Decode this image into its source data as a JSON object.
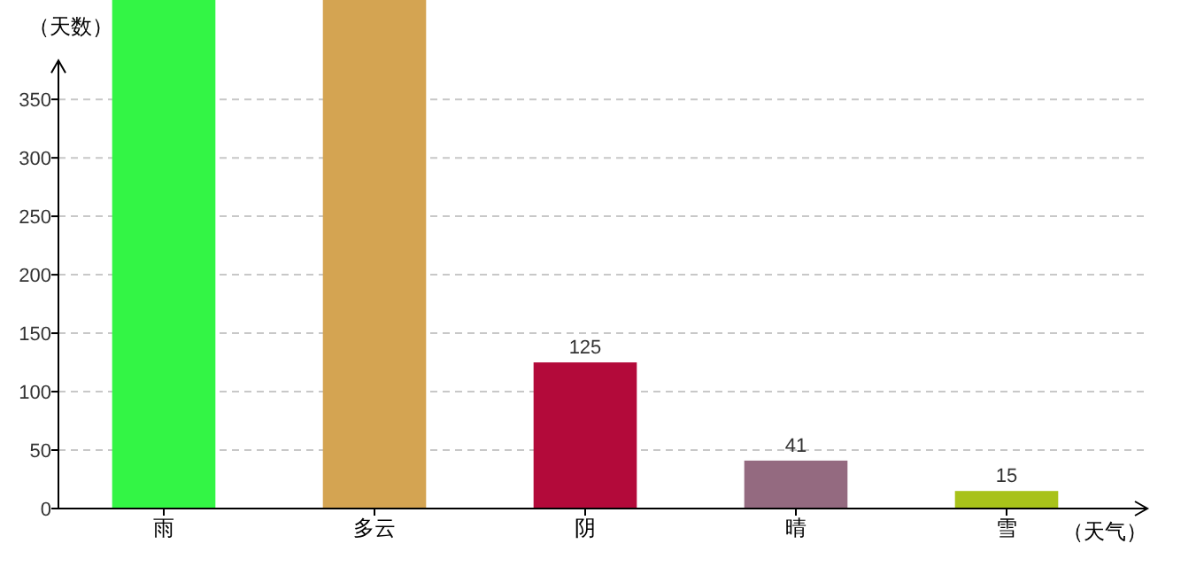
{
  "chart_data": {
    "type": "bar",
    "ylabel": "（天数）",
    "xlabel": "（天气）",
    "categories": [
      "雨",
      "多云",
      "阴",
      "晴",
      "雪"
    ],
    "values": [
      435,
      435,
      125,
      41,
      15
    ],
    "colors": [
      "#33f545",
      "#d4a452",
      "#b30a3a",
      "#946a80",
      "#a8c21a"
    ],
    "value_labels": [
      null,
      null,
      "125",
      "41",
      "15"
    ],
    "ylim": [
      0,
      435
    ],
    "yticks": [
      0,
      50,
      100,
      150,
      200,
      250,
      300,
      350
    ],
    "grid": "y"
  }
}
